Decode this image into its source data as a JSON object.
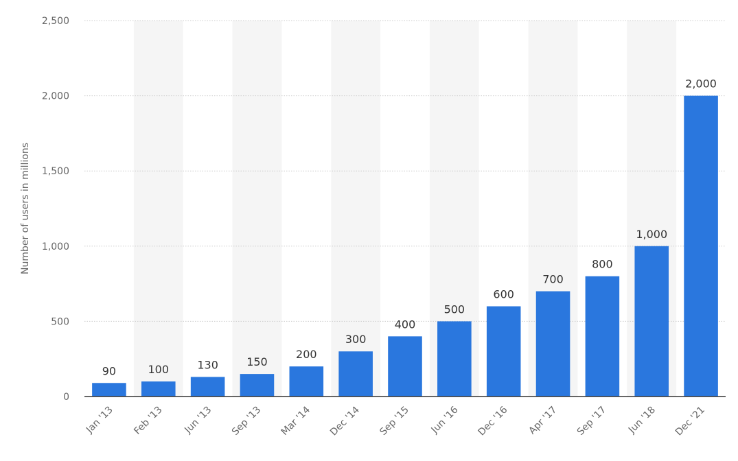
{
  "chart_data": {
    "type": "bar",
    "categories": [
      "Jan '13",
      "Feb '13",
      "Jun '13",
      "Sep '13",
      "Mar '14",
      "Dec '14",
      "Sep '15",
      "Jun '16",
      "Dec '16",
      "Apr '17",
      "Sep '17",
      "Jun '18",
      "Dec '21"
    ],
    "values": [
      90,
      100,
      130,
      150,
      200,
      300,
      400,
      500,
      600,
      700,
      800,
      1000,
      2000
    ],
    "value_labels": [
      "90",
      "100",
      "130",
      "150",
      "200",
      "300",
      "400",
      "500",
      "600",
      "700",
      "800",
      "1,000",
      "2,000"
    ],
    "ylabel": "Number of users in millions",
    "ylim": [
      0,
      2500
    ],
    "yticks": [
      0,
      500,
      1000,
      1500,
      2000,
      2500
    ],
    "ytick_labels": [
      "0",
      "500",
      "1,000",
      "1,500",
      "2,000",
      "2,500"
    ],
    "grid": true,
    "legend": "none",
    "colors": {
      "bar": "#2a77de",
      "band": "#f5f5f5",
      "grid": "#cccccc",
      "axis": "#333333",
      "tick_text": "#666666",
      "value_text": "#333333"
    }
  }
}
